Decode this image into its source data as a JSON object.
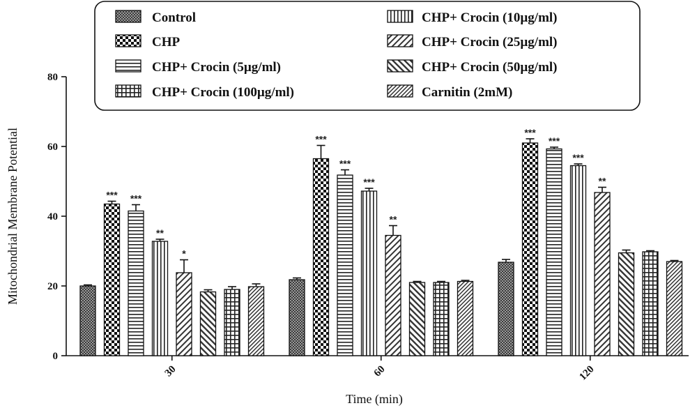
{
  "chart_data": {
    "type": "bar",
    "title": "",
    "xlabel": "Time (min)",
    "ylabel": "Mitochondrial Membrane Potential",
    "ylim": [
      0,
      80
    ],
    "yticks": [
      0,
      20,
      40,
      60,
      80
    ],
    "categories": [
      "30",
      "60",
      "120"
    ],
    "grid": false,
    "legend_position": "top",
    "series": [
      {
        "name": "Control",
        "pattern": "dots-fine",
        "values": [
          20,
          21.8,
          26.8
        ],
        "errors": [
          0.3,
          0.5,
          0.8
        ],
        "significance": [
          "",
          "",
          ""
        ]
      },
      {
        "name": "CHP",
        "pattern": "checker-large",
        "values": [
          43.5,
          56.5,
          61
        ],
        "errors": [
          0.8,
          3.8,
          1.2
        ],
        "significance": [
          "***",
          "***",
          "***"
        ]
      },
      {
        "name": "CHP+ Crocin (5µg/ml)",
        "pattern": "horizontal-lines",
        "values": [
          41.5,
          51.8,
          59.3
        ],
        "errors": [
          1.8,
          1.5,
          0.5
        ],
        "significance": [
          "***",
          "***",
          "***"
        ]
      },
      {
        "name": "CHP+ Crocin (10µg/ml)",
        "pattern": "vertical-lines",
        "values": [
          32.8,
          47.2,
          54.5
        ],
        "errors": [
          0.6,
          0.8,
          0.5
        ],
        "significance": [
          "**",
          "***",
          "***"
        ]
      },
      {
        "name": "CHP+ Crocin (25µg/ml)",
        "pattern": "diagonal-up",
        "values": [
          23.8,
          34.5,
          46.8
        ],
        "errors": [
          3.7,
          2.8,
          1.5
        ],
        "significance": [
          "*",
          "**",
          "**"
        ]
      },
      {
        "name": "CHP+ Crocin (50µg/ml)",
        "pattern": "diagonal-down",
        "values": [
          18.3,
          21,
          29.5
        ],
        "errors": [
          0.6,
          0.3,
          0.8
        ],
        "significance": [
          "",
          "",
          ""
        ]
      },
      {
        "name": "CHP+ Crocin (100µg/ml)",
        "pattern": "grid",
        "values": [
          19,
          21,
          29.8
        ],
        "errors": [
          0.8,
          0.3,
          0.3
        ],
        "significance": [
          "",
          "",
          ""
        ]
      },
      {
        "name": "Carnitin (2mM)",
        "pattern": "diagonal-up-dense",
        "values": [
          19.8,
          21.3,
          27
        ],
        "errors": [
          0.8,
          0.3,
          0.3
        ],
        "significance": [
          "",
          "",
          ""
        ]
      }
    ],
    "legend_layout": {
      "left_column": [
        "Control",
        "CHP",
        "CHP+ Crocin (5µg/ml)",
        "CHP+ Crocin (100µg/ml)"
      ],
      "right_column": [
        "CHP+ Crocin (10µg/ml)",
        "CHP+ Crocin (25µg/ml)",
        "CHP+ Crocin (50µg/ml)",
        "Carnitin (2mM)"
      ]
    }
  }
}
